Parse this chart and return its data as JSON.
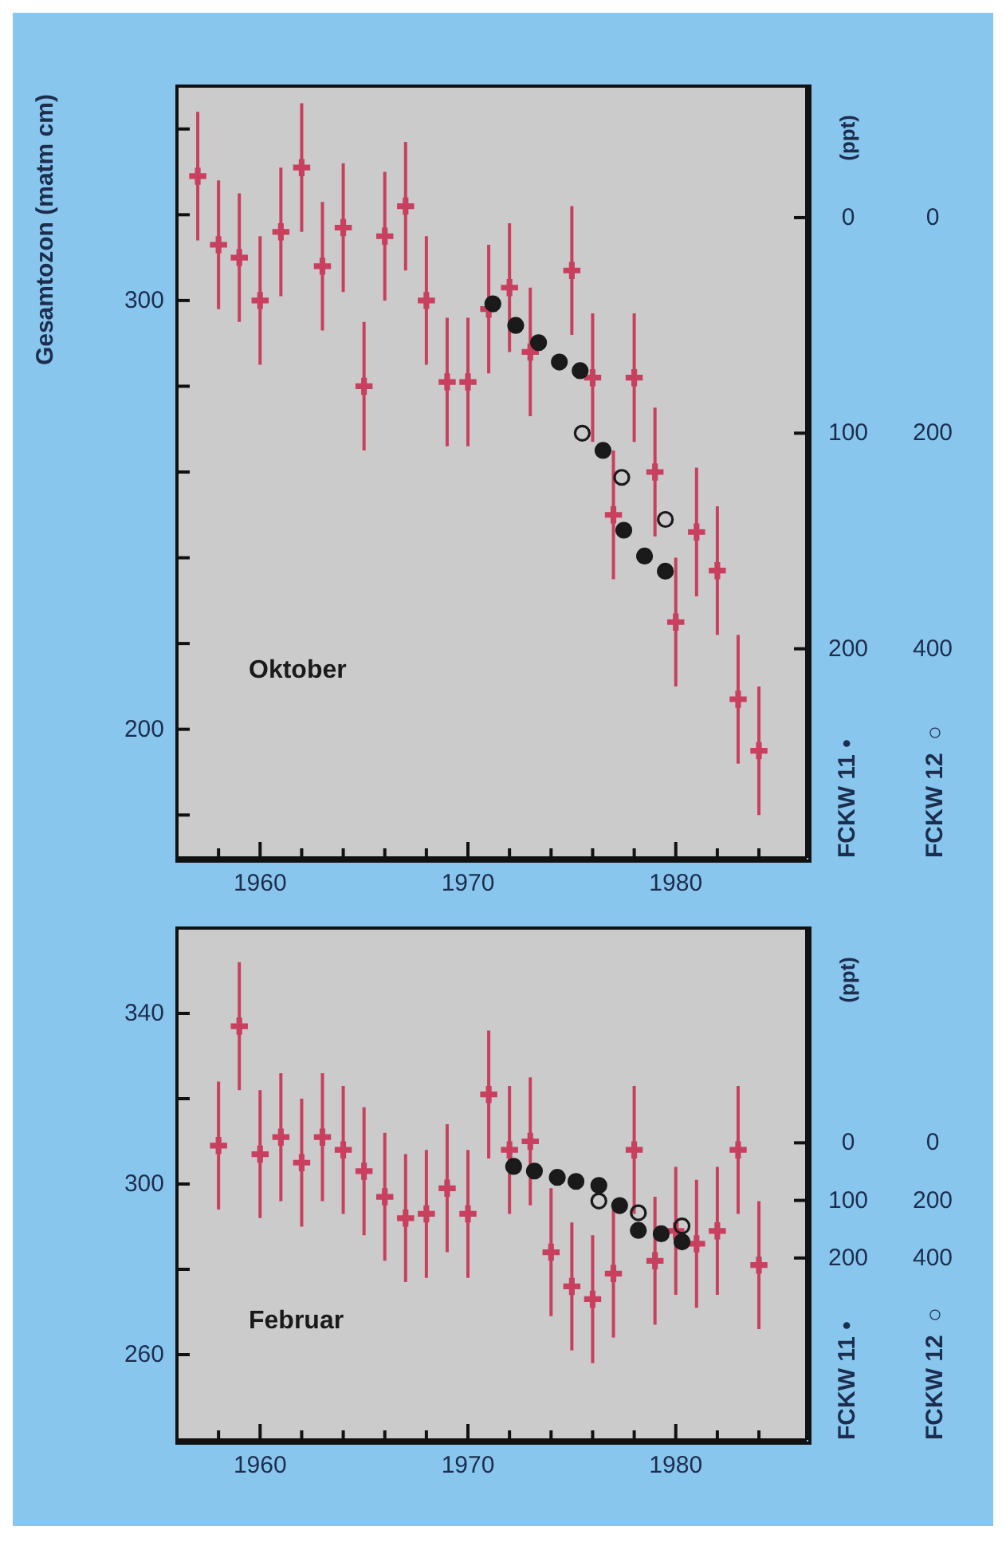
{
  "chart_data": [
    {
      "type": "scatter",
      "title": "Oktober",
      "ylabel": "Gesamtozon (matm cm)",
      "y2label": "FCKW 11 •",
      "y3label": "FCKW 12 ○",
      "annotations": [
        "(ppt)"
      ],
      "legend": false,
      "xlim": [
        1956,
        1986.3
      ],
      "xticks": [
        {
          "value": 1958,
          "label": null
        },
        1960,
        {
          "value": 1962,
          "label": null
        },
        {
          "value": 1964,
          "label": null
        },
        {
          "value": 1966,
          "label": null
        },
        {
          "value": 1968,
          "label": null
        },
        1970,
        {
          "value": 1972,
          "label": null
        },
        {
          "value": 1974,
          "label": null
        },
        {
          "value": 1976,
          "label": null
        },
        {
          "value": 1978,
          "label": null
        },
        1980,
        {
          "value": 1982,
          "label": null
        },
        {
          "value": 1984,
          "label": null
        }
      ],
      "ylim": [
        170,
        350
      ],
      "yticks": [
        {
          "value": 180,
          "label": null
        },
        200,
        {
          "value": 220,
          "label": null
        },
        {
          "value": 240,
          "label": null
        },
        {
          "value": 260,
          "label": null
        },
        {
          "value": 280,
          "label": null
        },
        300,
        {
          "value": 320,
          "label": null
        },
        {
          "value": 340,
          "label": null
        }
      ],
      "y2lim": [
        297,
        -61
      ],
      "y2ticks": [
        0,
        100,
        200
      ],
      "y3lim": [
        594,
        -122
      ],
      "y3ticks": [
        0,
        200,
        400
      ],
      "series": [
        {
          "color": "#c8405e",
          "marker": "cross",
          "x": [
            1957,
            1958,
            1959,
            1960,
            1961,
            1962,
            1963,
            1964,
            1965,
            1966,
            1967,
            1968,
            1969,
            1970,
            1971,
            1972,
            1973,
            1975,
            1976,
            1977,
            1978,
            1979,
            1980,
            1981,
            1982,
            1983,
            1984
          ],
          "values": [
            329,
            313,
            310,
            300,
            316,
            331,
            308,
            317,
            280,
            315,
            322,
            300,
            281,
            281,
            298,
            303,
            288,
            307,
            282,
            250,
            282,
            260,
            225,
            246,
            237,
            207,
            195
          ],
          "errors": [
            15,
            15,
            15,
            15,
            15,
            15,
            15,
            15,
            15,
            15,
            15,
            15,
            15,
            15,
            15,
            15,
            15,
            15,
            15,
            15,
            15,
            15,
            15,
            15,
            15,
            15,
            15
          ]
        },
        {
          "axis": "y2",
          "color": "#1a1a1a",
          "marker": "circle",
          "x": [
            1971.2,
            1972.3,
            1973.4,
            1974.4,
            1975.4,
            1976.5,
            1977.5,
            1978.5,
            1979.5
          ],
          "values": [
            40,
            50,
            58,
            67,
            71,
            108,
            145,
            157,
            164
          ]
        },
        {
          "axis": "y3",
          "color": "#1a1a1a",
          "marker": "circle",
          "x": [
            1975.5,
            1977.4,
            1979.5
          ],
          "values": [
            200,
            241,
            280
          ]
        }
      ]
    },
    {
      "type": "scatter",
      "title": "Februar",
      "y2label": "FCKW 11 •",
      "y3label": "FCKW 12 ○",
      "annotations": [
        "(ppt)"
      ],
      "legend": false,
      "xlim": [
        1956,
        1986.3
      ],
      "xticks": [
        {
          "value": 1958,
          "label": null
        },
        1960,
        {
          "value": 1962,
          "label": null
        },
        {
          "value": 1964,
          "label": null
        },
        {
          "value": 1966,
          "label": null
        },
        {
          "value": 1968,
          "label": null
        },
        1970,
        {
          "value": 1972,
          "label": null
        },
        {
          "value": 1974,
          "label": null
        },
        {
          "value": 1976,
          "label": null
        },
        {
          "value": 1978,
          "label": null
        },
        1980,
        {
          "value": 1982,
          "label": null
        },
        {
          "value": 1984,
          "label": null
        }
      ],
      "ylim": [
        240,
        360
      ],
      "yticks": [
        260,
        {
          "value": 280,
          "label": null
        },
        300,
        {
          "value": 320,
          "label": null
        },
        340
      ],
      "y2lim": [
        516,
        -373
      ],
      "y2ticks": [
        0,
        100,
        200
      ],
      "y3lim": [
        1032,
        -746
      ],
      "y3ticks": [
        0,
        200,
        400
      ],
      "series": [
        {
          "color": "#c8405e",
          "marker": "cross",
          "x": [
            1958,
            1959,
            1960,
            1961,
            1962,
            1963,
            1964,
            1965,
            1966,
            1967,
            1968,
            1969,
            1970,
            1971,
            1972,
            1973,
            1974,
            1975,
            1976,
            1977,
            1978,
            1979,
            1980,
            1981,
            1982,
            1983,
            1984
          ],
          "values": [
            309,
            337,
            307,
            311,
            305,
            311,
            308,
            303,
            297,
            292,
            293,
            299,
            293,
            321,
            308,
            310,
            284,
            276,
            273,
            279,
            308,
            282,
            289,
            286,
            289,
            308,
            281
          ],
          "errors": [
            15,
            15,
            15,
            15,
            15,
            15,
            15,
            15,
            15,
            15,
            15,
            15,
            15,
            15,
            15,
            15,
            15,
            15,
            15,
            15,
            15,
            15,
            15,
            15,
            15,
            15,
            15
          ]
        },
        {
          "axis": "y2",
          "color": "#1a1a1a",
          "marker": "circle",
          "x": [
            1972.2,
            1973.2,
            1974.3,
            1975.2,
            1976.3,
            1977.3,
            1978.2,
            1979.3,
            1980.3
          ],
          "values": [
            41,
            49,
            60,
            67,
            74,
            109,
            152,
            158,
            172
          ]
        },
        {
          "axis": "y3",
          "color": "#1a1a1a",
          "marker": "circle",
          "x": [
            1976.3,
            1978.2,
            1980.3
          ],
          "values": [
            202,
            243,
            289
          ]
        }
      ]
    }
  ]
}
